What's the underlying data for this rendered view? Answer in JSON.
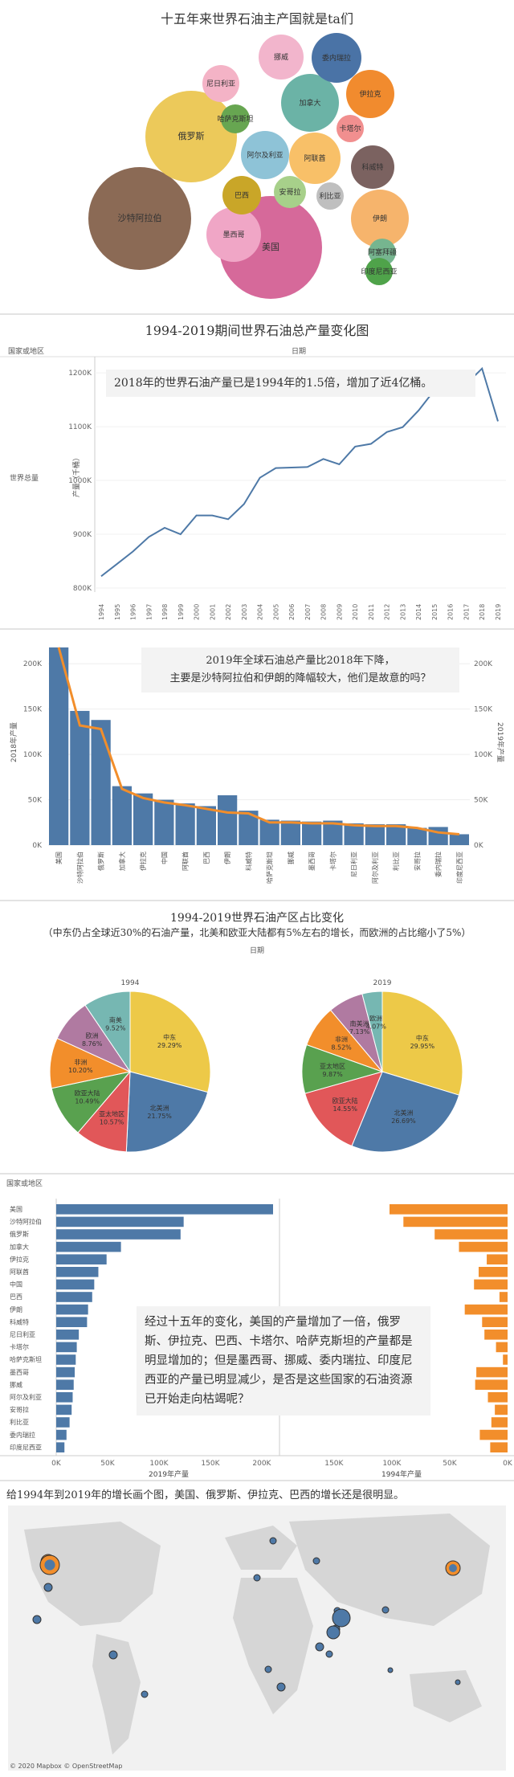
{
  "panel1": {
    "title": "十五年来世界石油主产国就是ta们",
    "bubbles": [
      {
        "name": "沙特阿拉伯",
        "value": 210,
        "color": "#8b6a55"
      },
      {
        "name": "美国",
        "value": 230,
        "color": "#d6699a"
      },
      {
        "name": "俄罗斯",
        "value": 185,
        "color": "#ecc95a"
      },
      {
        "name": "加拿大",
        "value": 65,
        "color": "#6bb3a6"
      },
      {
        "name": "墨西哥",
        "value": 50,
        "color": "#f0a6c6"
      },
      {
        "name": "伊朗",
        "value": 45,
        "color": "#f6b46c"
      },
      {
        "name": "阿联酋",
        "value": 40,
        "color": "#f8c068"
      },
      {
        "name": "委内瑞拉",
        "value": 35,
        "color": "#4a73a6"
      },
      {
        "name": "伊拉克",
        "value": 35,
        "color": "#f18b2e"
      },
      {
        "name": "挪威",
        "value": 30,
        "color": "#f2b5cc"
      },
      {
        "name": "科威特",
        "value": 30,
        "color": "#7b6260"
      },
      {
        "name": "尼日利亚",
        "value": 25,
        "color": "#f4b3c6"
      },
      {
        "name": "巴西",
        "value": 28,
        "color": "#c9a628"
      },
      {
        "name": "阿尔及利亚",
        "value": 22,
        "color": "#8ec3d7"
      },
      {
        "name": "哈萨克斯坦",
        "value": 20,
        "color": "#67a651"
      },
      {
        "name": "卡塔尔",
        "value": 18,
        "color": "#f18f8f"
      },
      {
        "name": "利比亚",
        "value": 18,
        "color": "#bfbfbf"
      },
      {
        "name": "安哥拉",
        "value": 18,
        "color": "#a7d08a"
      },
      {
        "name": "阿塞拜疆",
        "value": 16,
        "color": "#76b58f"
      },
      {
        "name": "印度尼西亚",
        "value": 15,
        "color": "#4fa34a"
      }
    ]
  },
  "panel2": {
    "title": "1994-2019期间世界石油总产量变化图",
    "col_header": "日期",
    "row_header": "国家或地区",
    "row_label": "世界总量",
    "ylabel": "产量（千桶）",
    "annotation": "2018年的世界石油产量已是1994年的1.5倍，增加了近4亿桶。",
    "ytick_labels": [
      "800K",
      "900K",
      "1000K",
      "1100K",
      "1200K"
    ]
  },
  "panel3": {
    "annotation_line1": "2019年全球石油总产量比2018年下降，",
    "annotation_line2": "主要是沙特阿拉伯和伊朗的降幅较大，他们是故意的吗？",
    "ylabel_left": "2018年产量",
    "ylabel_right": "2019年产量",
    "ytick_labels": [
      "0K",
      "50K",
      "100K",
      "150K",
      "200K"
    ]
  },
  "panel4": {
    "title": "1994-2019世界石油产区占比变化",
    "subtitle": "（中东仍占全球近30%的石油产量，北美和欧亚大陆都有5%左右的增长，而欧洲的占比缩小了5%）",
    "col_header": "日期",
    "pie_titles": [
      "1994",
      "2019"
    ]
  },
  "panel5": {
    "row_header": "国家或地区",
    "annotation": "经过十五年的变化，美国的产量增加了一倍，俄罗斯、伊拉克、巴西、卡塔尔、哈萨克斯坦的产量都是明显增加的；但是墨西哥、挪威、委内瑞拉、印度尼西亚的产量已明显减少，是否是这些国家的石油资源已开始走向枯竭呢？",
    "axis_left_label": "2019年产量",
    "axis_right_label": "1994年产量",
    "ticks_left": [
      "0K",
      "50K",
      "100K",
      "150K",
      "200K"
    ],
    "ticks_right": [
      "150K",
      "100K",
      "50K",
      "0K"
    ]
  },
  "panel6": {
    "title": "给1994年到2019年的增长画个图，美国、俄罗斯、伊拉克、巴西的增长还是很明显。",
    "credit": "© 2020 Mapbox © OpenStreetMap"
  },
  "colors": {
    "blue": "#4e79a7",
    "orange": "#f28e2b",
    "line": "#4e79a7"
  },
  "chart_data": [
    {
      "type": "line",
      "title": "1994-2019期间世界石油总产量变化图",
      "xlabel": "日期",
      "ylabel": "产量（千桶）",
      "series": [
        {
          "name": "世界总量",
          "x": [
            1994,
            1995,
            1996,
            1997,
            1998,
            1999,
            2000,
            2001,
            2002,
            2003,
            2004,
            2005,
            2006,
            2007,
            2008,
            2009,
            2010,
            2011,
            2012,
            2013,
            2014,
            2015,
            2016,
            2017,
            2018,
            2019
          ],
          "values": [
            822,
            845,
            868,
            895,
            912,
            900,
            935,
            935,
            928,
            956,
            1005,
            1023,
            1024,
            1025,
            1040,
            1030,
            1063,
            1068,
            1090,
            1099,
            1130,
            1168,
            1172,
            1179,
            1208,
            1110
          ]
        }
      ],
      "ylim": [
        800,
        1230
      ]
    },
    {
      "type": "bar",
      "categories": [
        "美国",
        "沙特阿拉伯",
        "俄罗斯",
        "加拿大",
        "伊拉克",
        "中国",
        "阿联酋",
        "巴西",
        "伊朗",
        "科威特",
        "哈萨克斯坦",
        "挪威",
        "墨西哥",
        "卡塔尔",
        "尼日利亚",
        "阿尔及利亚",
        "利比亚",
        "安哥拉",
        "委内瑞拉",
        "印度尼西亚"
      ],
      "series": [
        {
          "name": "2018年产量",
          "values": [
            218,
            148,
            138,
            65,
            57,
            50,
            46,
            43,
            55,
            38,
            28,
            27,
            26,
            27,
            24,
            23,
            23,
            19,
            20,
            12
          ]
        },
        {
          "name": "2019年产量",
          "values": [
            218,
            132,
            128,
            62,
            52,
            47,
            44,
            40,
            36,
            35,
            25,
            25,
            24,
            24,
            22,
            21,
            21,
            19,
            14,
            12
          ]
        }
      ],
      "ylim": [
        0,
        225
      ]
    },
    {
      "type": "pie",
      "title": "1994",
      "categories": [
        "中东",
        "北美洲",
        "亚太地区",
        "欧亚大陆",
        "非洲",
        "欧洲",
        "南美"
      ],
      "values": [
        29.29,
        21.75,
        10.57,
        10.49,
        10.2,
        8.76,
        9.52
      ]
    },
    {
      "type": "pie",
      "title": "2019",
      "categories": [
        "中东",
        "北美洲",
        "欧亚大陆",
        "亚太地区",
        "非洲",
        "南美洲",
        "欧洲"
      ],
      "values": [
        29.95,
        26.69,
        14.55,
        9.87,
        8.52,
        7.13,
        4.07
      ]
    },
    {
      "type": "bar",
      "categories": [
        "美国",
        "沙特阿拉伯",
        "俄罗斯",
        "加拿大",
        "伊拉克",
        "阿联酋",
        "中国",
        "巴西",
        "伊朗",
        "科威特",
        "尼日利亚",
        "卡塔尔",
        "哈萨克斯坦",
        "墨西哥",
        "挪威",
        "阿尔及利亚",
        "安哥拉",
        "利比亚",
        "委内瑞拉",
        "印度尼西亚"
      ],
      "series": [
        {
          "name": "2019年产量",
          "values": [
            211,
            124,
            121,
            63,
            49,
            41,
            37,
            35,
            31,
            30,
            22,
            20,
            19,
            18,
            17,
            16,
            15,
            13,
            10,
            8
          ]
        },
        {
          "name": "1994年产量",
          "values": [
            102,
            90,
            63,
            42,
            18,
            25,
            29,
            7,
            37,
            22,
            20,
            10,
            4,
            27,
            28,
            17,
            11,
            14,
            24,
            15
          ]
        }
      ]
    }
  ]
}
